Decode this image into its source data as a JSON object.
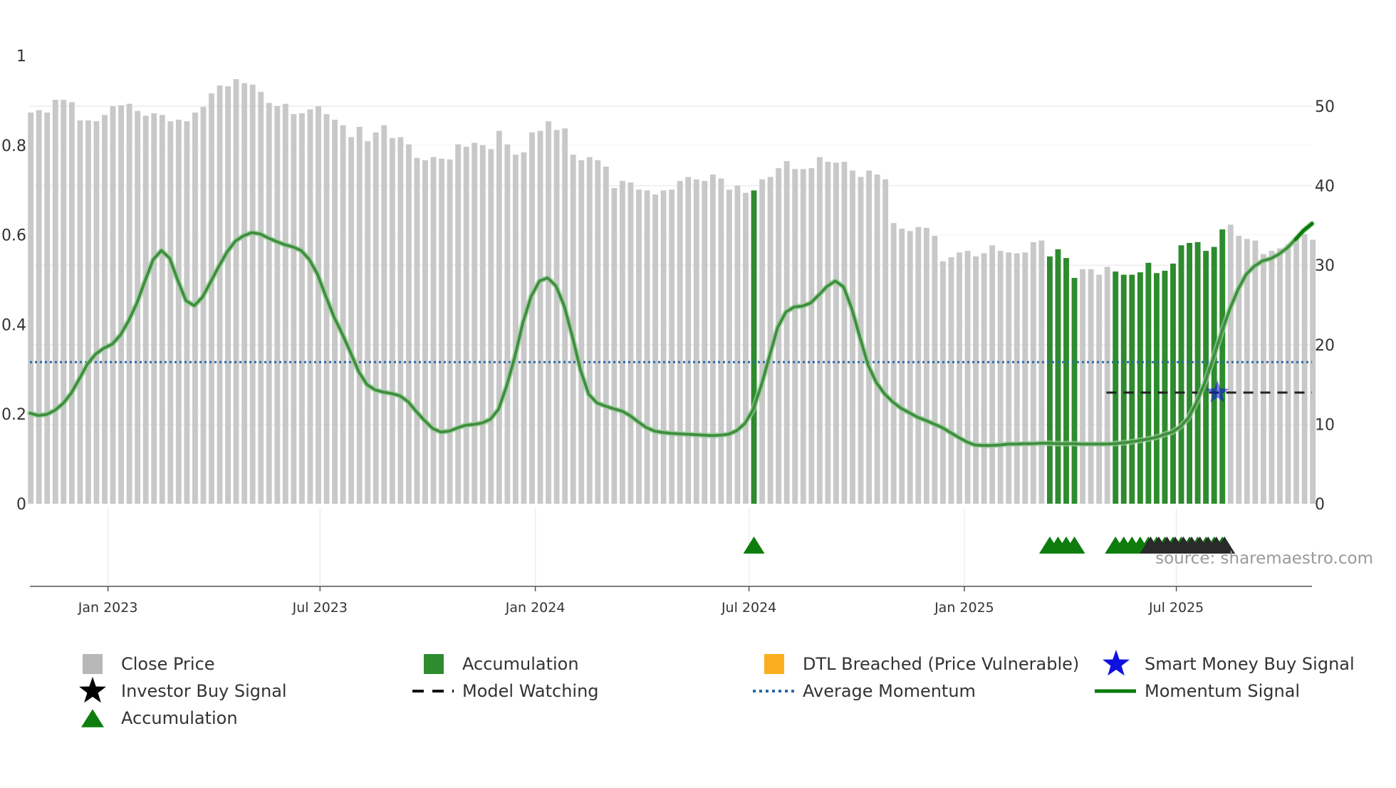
{
  "chart_data": {
    "type": "bar",
    "title": "",
    "xlabel": "",
    "ylabel_left": "",
    "ylabel_right": "",
    "x_range_weeks": [
      0,
      156
    ],
    "x_tick_labels": [
      {
        "label": "Jan 2023",
        "week": 9.5
      },
      {
        "label": "Jul 2023",
        "week": 35.3
      },
      {
        "label": "Jan 2024",
        "week": 61.5
      },
      {
        "label": "Jul 2024",
        "week": 87.5
      },
      {
        "label": "Jan 2025",
        "week": 113.7
      },
      {
        "label": "Jul 2025",
        "week": 139.5
      }
    ],
    "y_left_range": [
      0,
      1
    ],
    "y_left_ticks": [
      {
        "label": "0",
        "value": 0
      },
      {
        "label": "0.2",
        "value": 0.2
      },
      {
        "label": "0.4",
        "value": 0.4
      },
      {
        "label": "0.6",
        "value": 0.6
      },
      {
        "label": "0.8",
        "value": 0.8
      },
      {
        "label": "1",
        "value": 1
      }
    ],
    "y_right_range": [
      0,
      56
    ],
    "y_right_ticks": [
      {
        "label": "0",
        "value": 0
      },
      {
        "label": "10",
        "value": 10
      },
      {
        "label": "20",
        "value": 20
      },
      {
        "label": "30",
        "value": 30
      },
      {
        "label": "40",
        "value": 40
      },
      {
        "label": "50",
        "value": 50
      }
    ],
    "close_price": [
      49.2,
      49.5,
      49.2,
      50.8,
      50.8,
      50.5,
      48.2,
      48.2,
      48.1,
      48.9,
      50.0,
      50.1,
      50.3,
      49.4,
      48.8,
      49.1,
      48.9,
      48.1,
      48.3,
      48.1,
      49.2,
      49.9,
      51.6,
      52.6,
      52.5,
      53.4,
      52.9,
      52.7,
      51.8,
      50.4,
      50.0,
      50.3,
      49.0,
      49.1,
      49.6,
      50.0,
      49.0,
      48.3,
      47.6,
      46.1,
      47.4,
      45.6,
      46.7,
      47.6,
      46.0,
      46.1,
      45.2,
      43.5,
      43.2,
      43.6,
      43.4,
      43.3,
      45.2,
      44.9,
      45.4,
      45.1,
      44.6,
      46.9,
      45.2,
      43.9,
      44.2,
      46.7,
      46.9,
      48.1,
      47.0,
      47.2,
      43.9,
      43.2,
      43.6,
      43.2,
      42.4,
      39.7,
      40.6,
      40.4,
      39.5,
      39.4,
      38.9,
      39.4,
      39.5,
      40.6,
      41.1,
      40.8,
      40.6,
      41.4,
      40.9,
      39.5,
      40.0,
      39.1,
      39.4,
      40.8,
      41.1,
      42.2,
      43.1,
      42.1,
      42.1,
      42.2,
      43.6,
      43.0,
      42.9,
      43.0,
      41.9,
      41.1,
      41.9,
      41.4,
      40.8,
      35.3,
      34.6,
      34.3,
      34.8,
      34.7,
      33.7,
      30.5,
      31.0,
      31.6,
      31.8,
      31.1,
      31.5,
      32.5,
      31.8,
      31.6,
      31.5,
      31.6,
      32.9,
      33.1,
      31.1,
      32.0,
      30.9,
      28.4,
      29.5,
      29.5,
      28.8,
      29.8,
      29.2,
      28.8,
      28.8,
      29.1,
      30.3,
      29.0,
      29.3,
      30.2,
      32.5,
      32.8,
      32.9,
      31.8,
      32.3,
      34.5,
      35.1,
      33.7,
      33.3,
      33.1,
      31.4,
      31.8,
      32.1,
      32.6,
      33.3,
      33.9,
      33.2
    ],
    "accumulation_bars_weeks": [
      88,
      124,
      125,
      126,
      127,
      132,
      133,
      134,
      135,
      136,
      137,
      138,
      139,
      140,
      141,
      142,
      143,
      144,
      145
    ],
    "momentum_signal": [
      [
        0,
        0.202
      ],
      [
        1,
        0.197
      ],
      [
        2,
        0.199
      ],
      [
        3,
        0.208
      ],
      [
        4,
        0.223
      ],
      [
        5,
        0.246
      ],
      [
        6,
        0.278
      ],
      [
        7,
        0.312
      ],
      [
        8,
        0.334
      ],
      [
        9,
        0.347
      ],
      [
        10,
        0.356
      ],
      [
        11,
        0.376
      ],
      [
        12,
        0.408
      ],
      [
        13,
        0.447
      ],
      [
        14,
        0.497
      ],
      [
        15,
        0.545
      ],
      [
        16,
        0.565
      ],
      [
        17,
        0.548
      ],
      [
        18,
        0.498
      ],
      [
        19,
        0.453
      ],
      [
        20,
        0.442
      ],
      [
        21,
        0.461
      ],
      [
        22,
        0.495
      ],
      [
        23,
        0.53
      ],
      [
        24,
        0.562
      ],
      [
        25,
        0.586
      ],
      [
        26,
        0.598
      ],
      [
        27,
        0.605
      ],
      [
        28,
        0.602
      ],
      [
        29,
        0.593
      ],
      [
        30,
        0.585
      ],
      [
        31,
        0.578
      ],
      [
        32,
        0.573
      ],
      [
        33,
        0.565
      ],
      [
        34,
        0.545
      ],
      [
        35,
        0.512
      ],
      [
        36,
        0.463
      ],
      [
        37,
        0.417
      ],
      [
        38,
        0.379
      ],
      [
        39,
        0.338
      ],
      [
        40,
        0.295
      ],
      [
        41,
        0.266
      ],
      [
        42,
        0.254
      ],
      [
        43,
        0.249
      ],
      [
        44,
        0.246
      ],
      [
        45,
        0.241
      ],
      [
        46,
        0.228
      ],
      [
        47,
        0.206
      ],
      [
        48,
        0.186
      ],
      [
        49,
        0.168
      ],
      [
        50,
        0.16
      ],
      [
        51,
        0.162
      ],
      [
        52,
        0.169
      ],
      [
        53,
        0.175
      ],
      [
        54,
        0.177
      ],
      [
        55,
        0.18
      ],
      [
        56,
        0.188
      ],
      [
        57,
        0.21
      ],
      [
        58,
        0.262
      ],
      [
        59,
        0.328
      ],
      [
        60,
        0.405
      ],
      [
        61,
        0.463
      ],
      [
        62,
        0.497
      ],
      [
        63,
        0.504
      ],
      [
        64,
        0.486
      ],
      [
        65,
        0.442
      ],
      [
        66,
        0.374
      ],
      [
        67,
        0.298
      ],
      [
        68,
        0.244
      ],
      [
        69,
        0.225
      ],
      [
        70,
        0.218
      ],
      [
        71,
        0.212
      ],
      [
        72,
        0.207
      ],
      [
        73,
        0.197
      ],
      [
        74,
        0.183
      ],
      [
        75,
        0.17
      ],
      [
        76,
        0.162
      ],
      [
        77,
        0.159
      ],
      [
        78,
        0.157
      ],
      [
        79,
        0.156
      ],
      [
        80,
        0.155
      ],
      [
        81,
        0.154
      ],
      [
        82,
        0.153
      ],
      [
        83,
        0.152
      ],
      [
        84,
        0.153
      ],
      [
        85,
        0.155
      ],
      [
        86,
        0.163
      ],
      [
        87,
        0.179
      ],
      [
        88,
        0.21
      ],
      [
        89,
        0.264
      ],
      [
        90,
        0.33
      ],
      [
        91,
        0.394
      ],
      [
        92,
        0.428
      ],
      [
        93,
        0.439
      ],
      [
        94,
        0.441
      ],
      [
        95,
        0.448
      ],
      [
        96,
        0.466
      ],
      [
        97,
        0.485
      ],
      [
        98,
        0.497
      ],
      [
        99,
        0.484
      ],
      [
        100,
        0.436
      ],
      [
        101,
        0.371
      ],
      [
        102,
        0.309
      ],
      [
        103,
        0.27
      ],
      [
        104,
        0.245
      ],
      [
        105,
        0.227
      ],
      [
        106,
        0.213
      ],
      [
        107,
        0.203
      ],
      [
        108,
        0.193
      ],
      [
        109,
        0.186
      ],
      [
        110,
        0.178
      ],
      [
        111,
        0.17
      ],
      [
        112,
        0.159
      ],
      [
        113,
        0.148
      ],
      [
        114,
        0.138
      ],
      [
        115,
        0.131
      ],
      [
        116,
        0.13
      ],
      [
        117,
        0.13
      ],
      [
        118,
        0.131
      ],
      [
        119,
        0.133
      ],
      [
        120,
        0.133
      ],
      [
        121,
        0.134
      ],
      [
        122,
        0.134
      ],
      [
        123,
        0.135
      ],
      [
        124,
        0.135
      ],
      [
        125,
        0.134
      ],
      [
        126,
        0.134
      ],
      [
        127,
        0.134
      ],
      [
        128,
        0.133
      ],
      [
        129,
        0.133
      ],
      [
        130,
        0.133
      ],
      [
        131,
        0.133
      ],
      [
        132,
        0.134
      ],
      [
        133,
        0.136
      ],
      [
        134,
        0.138
      ],
      [
        135,
        0.141
      ],
      [
        136,
        0.144
      ],
      [
        137,
        0.148
      ],
      [
        138,
        0.154
      ],
      [
        139,
        0.16
      ],
      [
        140,
        0.172
      ],
      [
        141,
        0.192
      ],
      [
        142,
        0.228
      ],
      [
        143,
        0.272
      ],
      [
        144,
        0.325
      ],
      [
        145,
        0.382
      ],
      [
        146,
        0.434
      ],
      [
        147,
        0.478
      ],
      [
        148,
        0.512
      ],
      [
        149,
        0.53
      ],
      [
        150,
        0.542
      ],
      [
        151,
        0.547
      ],
      [
        152,
        0.557
      ],
      [
        153,
        0.571
      ],
      [
        154,
        0.59
      ],
      [
        155,
        0.61
      ],
      [
        156,
        0.625
      ]
    ],
    "average_momentum": 0.316,
    "model_watching": {
      "start_week": 131,
      "end_week": 156,
      "value": 0.248
    },
    "smart_money_buy_signal": {
      "week": 144.5,
      "value": 0.248
    },
    "accumulation_markers_weeks": [
      88,
      124,
      125,
      126,
      127,
      132,
      133,
      134,
      135,
      136,
      137,
      138,
      139,
      140,
      141,
      142,
      143,
      144,
      145
    ],
    "investor_buy_signal_markers_weeks": [
      136,
      137,
      138,
      139,
      140,
      141,
      142,
      143,
      144,
      145
    ],
    "colors": {
      "close_price": "#c8c8c8",
      "accumulation": "#2e8b2e",
      "accumulation_marker": "#0e7d0e",
      "dtl_breached": "#fbae1d",
      "smart_money": "#1010e0",
      "investor_marker": "#2a2a2a",
      "model_watching": "#222222",
      "average_momentum": "#2a6aa8",
      "momentum_signal": "#0a7a0a"
    },
    "legend": [
      {
        "key": "close",
        "label": "Close Price",
        "symbol": "square",
        "color": "#b8b8b8"
      },
      {
        "key": "accum_bar",
        "label": "Accumulation",
        "symbol": "square",
        "color": "#2e8b2e"
      },
      {
        "key": "dtl",
        "label": "DTL Breached (Price Vulnerable)",
        "symbol": "square",
        "color": "#fbae1d"
      },
      {
        "key": "smart",
        "label": "Smart Money Buy Signal",
        "symbol": "star",
        "color": "#1010e0"
      },
      {
        "key": "investor",
        "label": "Investor Buy Signal",
        "symbol": "star",
        "color": "#000000"
      },
      {
        "key": "watching",
        "label": "Model Watching",
        "symbol": "dash",
        "color": "#111111"
      },
      {
        "key": "avg",
        "label": "Average Momentum",
        "symbol": "dot",
        "color": "#2a6aa8"
      },
      {
        "key": "mom",
        "label": "Momentum Signal",
        "symbol": "line",
        "color": "#0a7a0a"
      },
      {
        "key": "accum_tri",
        "label": "Accumulation",
        "symbol": "triangle",
        "color": "#0e7d0e"
      }
    ],
    "source": "source: sharemaestro.com"
  }
}
